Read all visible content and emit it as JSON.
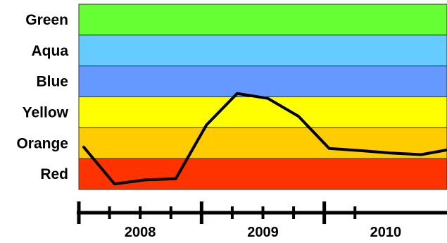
{
  "chart_data": {
    "type": "line",
    "bands": [
      {
        "name": "Green",
        "color": "#66ff33"
      },
      {
        "name": "Aqua",
        "color": "#66ccff"
      },
      {
        "name": "Blue",
        "color": "#6699ff"
      },
      {
        "name": "Yellow",
        "color": "#ffff00"
      },
      {
        "name": "Orange",
        "color": "#ffcc00"
      },
      {
        "name": "Red",
        "color": "#ff3300"
      }
    ],
    "band_range": [
      0,
      6
    ],
    "years": [
      "2008",
      "2009",
      "2010"
    ],
    "quarters_per_year": 4,
    "x_range": [
      2007.75,
      2010.75
    ],
    "series": [
      {
        "values": [
          {
            "x": 2007.79,
            "y": 1.37
          },
          {
            "x": 2008.04,
            "y": 0.18
          },
          {
            "x": 2008.29,
            "y": 0.31
          },
          {
            "x": 2008.54,
            "y": 0.35
          },
          {
            "x": 2008.79,
            "y": 2.09
          },
          {
            "x": 2009.04,
            "y": 3.11
          },
          {
            "x": 2009.29,
            "y": 2.95
          },
          {
            "x": 2009.54,
            "y": 2.37
          },
          {
            "x": 2009.79,
            "y": 1.33
          },
          {
            "x": 2010.04,
            "y": 1.26
          },
          {
            "x": 2010.29,
            "y": 1.18
          },
          {
            "x": 2010.54,
            "y": 1.13
          },
          {
            "x": 2010.75,
            "y": 1.28
          }
        ],
        "color": "#000000"
      }
    ]
  }
}
